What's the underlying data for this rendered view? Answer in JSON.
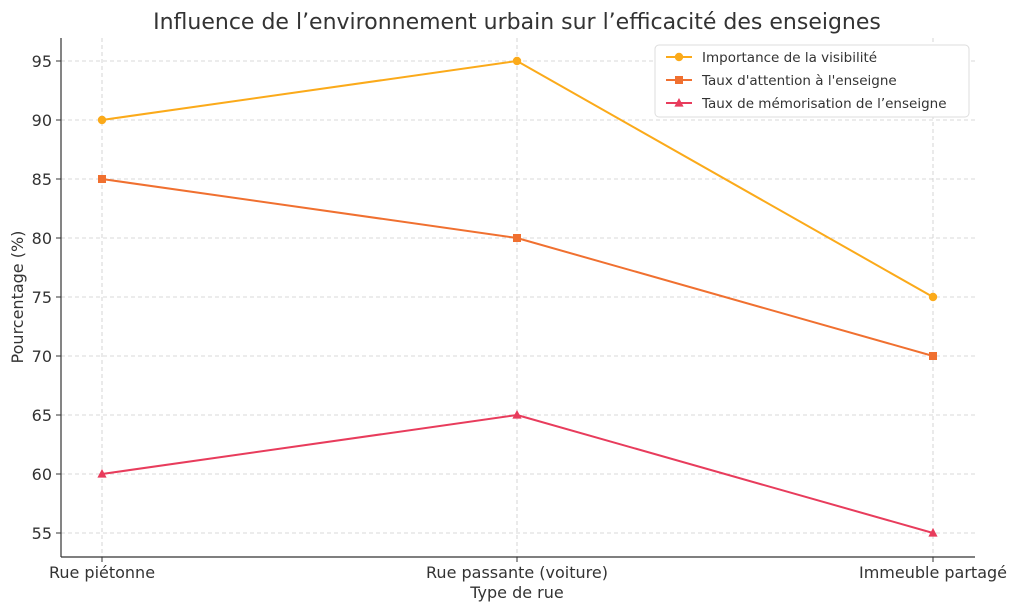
{
  "chart_data": {
    "type": "line",
    "title": "Influence de l’environnement urbain sur l’efficacité des enseignes",
    "xlabel": "Type de rue",
    "ylabel": "Pourcentage (%)",
    "categories": [
      "Rue piétonne",
      "Rue passante (voiture)",
      "Immeuble partagé"
    ],
    "ylim": [
      53,
      97
    ],
    "yticks": [
      55,
      60,
      65,
      70,
      75,
      80,
      85,
      90,
      95
    ],
    "grid": true,
    "legend_position": "top-right",
    "series": [
      {
        "name": "Importance de la visibilité",
        "values": [
          90,
          95,
          75
        ],
        "color": "#FBAA1A",
        "marker": "circle"
      },
      {
        "name": "Taux d'attention à l'enseigne",
        "values": [
          85,
          80,
          70
        ],
        "color": "#F07030",
        "marker": "square"
      },
      {
        "name": "Taux de mémorisation de l’enseigne",
        "values": [
          60,
          65,
          55
        ],
        "color": "#E83C5C",
        "marker": "triangle"
      }
    ]
  }
}
